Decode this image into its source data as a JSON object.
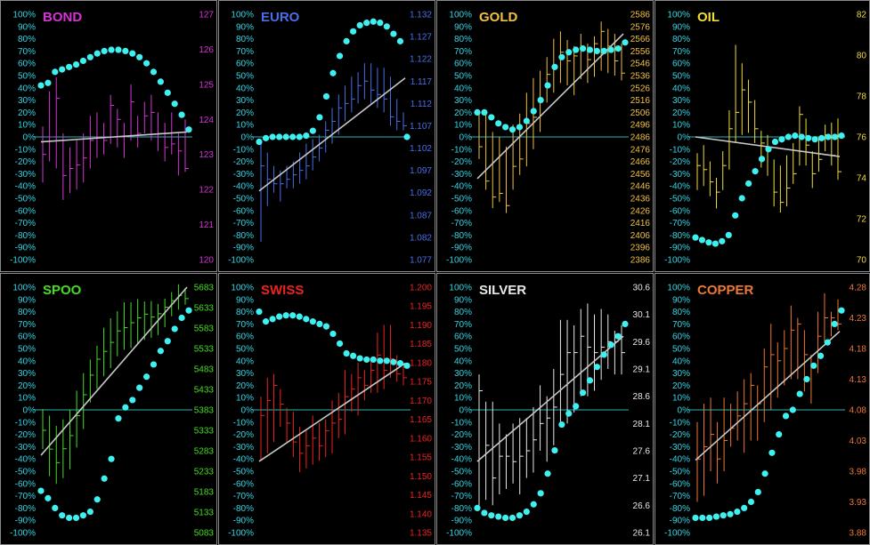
{
  "colors": {
    "background": "#000000",
    "panel_border": "#8a8a8a",
    "zero_line": "#2fb4b4",
    "left_ticks": "#33d6e6",
    "dots": "#3ff0f0",
    "regression": "#c8c8c8"
  },
  "left_axis_labels": [
    "100%",
    "90%",
    "80%",
    "70%",
    "60%",
    "50%",
    "40%",
    "30%",
    "20%",
    "10%",
    "0%",
    "-10%",
    "-20%",
    "-30%",
    "-40%",
    "-50%",
    "-60%",
    "-70%",
    "-80%",
    "-90%",
    "-100%"
  ],
  "chart_data": [
    {
      "type": "bar",
      "title": "BOND",
      "color": "#d633d6",
      "price_axis_labels": [
        "127",
        "126",
        "125",
        "124",
        "123",
        "122",
        "121",
        "120"
      ],
      "price_range": [
        120,
        127
      ],
      "bars": [
        [
          123.8,
          122.2,
          123.0
        ],
        [
          124.8,
          122.8,
          123.5
        ],
        [
          125.2,
          122.6,
          124.6
        ],
        [
          123.6,
          121.7,
          122.4
        ],
        [
          123.2,
          121.9,
          122.6
        ],
        [
          123.4,
          122.0,
          122.7
        ],
        [
          123.6,
          122.2,
          122.9
        ],
        [
          124.1,
          122.6,
          123.4
        ],
        [
          124.2,
          122.9,
          123.5
        ],
        [
          123.9,
          123.0,
          123.4
        ],
        [
          124.7,
          123.3,
          124.4
        ],
        [
          124.3,
          123.2,
          124.0
        ],
        [
          123.9,
          122.9,
          123.5
        ],
        [
          125.0,
          123.4,
          124.5
        ],
        [
          124.1,
          123.2,
          123.6
        ],
        [
          124.5,
          123.6,
          124.1
        ],
        [
          124.7,
          123.4,
          124.2
        ],
        [
          124.2,
          123.1,
          123.6
        ],
        [
          123.9,
          122.8,
          123.2
        ],
        [
          124.2,
          123.0,
          123.3
        ],
        [
          123.6,
          122.4,
          123.1
        ],
        [
          124.0,
          122.5,
          122.6
        ]
      ],
      "momentum": [
        42,
        44,
        53,
        55,
        57,
        59,
        62,
        65,
        68,
        70,
        71,
        71,
        70,
        68,
        65,
        60,
        53,
        45,
        36,
        27,
        18,
        6
      ],
      "regression": [
        -4,
        4
      ]
    },
    {
      "type": "bar",
      "title": "EURO",
      "color": "#4a6ee8",
      "price_axis_labels": [
        "1.132",
        "1.127",
        "1.122",
        "1.117",
        "1.112",
        "1.107",
        "1.102",
        "1.097",
        "1.092",
        "1.087",
        "1.082",
        "1.077"
      ],
      "price_range": [
        1.077,
        1.132
      ],
      "bars": [
        [
          1.103,
          1.081,
          1.098
        ],
        [
          1.101,
          1.089,
          1.095
        ],
        [
          1.098,
          1.092,
          1.094
        ],
        [
          1.097,
          1.09,
          1.094
        ],
        [
          1.098,
          1.093,
          1.095
        ],
        [
          1.099,
          1.093,
          1.096
        ],
        [
          1.101,
          1.094,
          1.097
        ],
        [
          1.103,
          1.095,
          1.098
        ],
        [
          1.104,
          1.097,
          1.1
        ],
        [
          1.105,
          1.099,
          1.102
        ],
        [
          1.108,
          1.101,
          1.106
        ],
        [
          1.111,
          1.103,
          1.108
        ],
        [
          1.114,
          1.105,
          1.111
        ],
        [
          1.116,
          1.108,
          1.112
        ],
        [
          1.118,
          1.11,
          1.113
        ],
        [
          1.119,
          1.112,
          1.116
        ],
        [
          1.121,
          1.113,
          1.117
        ],
        [
          1.121,
          1.112,
          1.115
        ],
        [
          1.12,
          1.111,
          1.114
        ],
        [
          1.12,
          1.11,
          1.113
        ],
        [
          1.118,
          1.107,
          1.109
        ],
        [
          1.113,
          1.106,
          1.108
        ],
        [
          1.11,
          1.106,
          1.107
        ]
      ],
      "momentum": [
        -4,
        -1,
        0,
        0,
        0,
        0,
        0,
        1,
        5,
        16,
        33,
        52,
        66,
        78,
        86,
        91,
        93,
        94,
        93,
        90,
        84,
        78,
        0
      ],
      "regression": [
        -44,
        48
      ]
    },
    {
      "type": "bar",
      "title": "GOLD",
      "color": "#f0c040",
      "price_axis_labels": [
        "2586",
        "2576",
        "2566",
        "2556",
        "2546",
        "2536",
        "2526",
        "2516",
        "2506",
        "2496",
        "2486",
        "2476",
        "2466",
        "2456",
        "2446",
        "2436",
        "2426",
        "2416",
        "2406",
        "2396",
        "2386"
      ],
      "price_range": [
        2386,
        2586
      ],
      "bars": [
        [
          2505,
          2468,
          2478
        ],
        [
          2508,
          2443,
          2450
        ],
        [
          2490,
          2428,
          2437
        ],
        [
          2486,
          2433,
          2440
        ],
        [
          2478,
          2424,
          2430
        ],
        [
          2496,
          2443,
          2462
        ],
        [
          2505,
          2455,
          2468
        ],
        [
          2522,
          2462,
          2497
        ],
        [
          2534,
          2476,
          2502
        ],
        [
          2540,
          2490,
          2516
        ],
        [
          2551,
          2514,
          2537
        ],
        [
          2566,
          2522,
          2542
        ],
        [
          2572,
          2530,
          2555
        ],
        [
          2565,
          2528,
          2548
        ],
        [
          2560,
          2520,
          2552
        ],
        [
          2570,
          2533,
          2560
        ],
        [
          2562,
          2530,
          2549
        ],
        [
          2568,
          2535,
          2562
        ],
        [
          2580,
          2540,
          2572
        ],
        [
          2574,
          2538,
          2560
        ],
        [
          2570,
          2536,
          2548
        ],
        [
          2562,
          2532,
          2538
        ]
      ],
      "momentum": [
        20,
        20,
        16,
        11,
        8,
        6,
        8,
        13,
        21,
        30,
        42,
        57,
        65,
        69,
        71,
        72,
        71,
        70,
        70,
        71,
        72,
        77
      ],
      "regression": [
        -34,
        84
      ]
    },
    {
      "type": "bar",
      "title": "OIL",
      "color": "#f0dc3c",
      "price_axis_labels": [
        "82",
        "80",
        "78",
        "76",
        "74",
        "72",
        "70"
      ],
      "price_range": [
        70,
        82
      ],
      "bars": [
        [
          75.2,
          73.4,
          74.6
        ],
        [
          75.6,
          73.6,
          74.4
        ],
        [
          74.8,
          73.1,
          73.8
        ],
        [
          74.0,
          72.5,
          73.3
        ],
        [
          75.3,
          73.4,
          74.6
        ],
        [
          77.3,
          74.4,
          76.4
        ],
        [
          80.5,
          75.7,
          77.2
        ],
        [
          79.6,
          76.1,
          78.3
        ],
        [
          78.8,
          76.2,
          77.7
        ],
        [
          77.8,
          75.7,
          76.4
        ],
        [
          76.3,
          74.5,
          75.7
        ],
        [
          76.1,
          74.1,
          75.4
        ],
        [
          74.9,
          72.6,
          73.3
        ],
        [
          74.6,
          72.3,
          72.8
        ],
        [
          75.1,
          72.6,
          73.5
        ],
        [
          75.7,
          73.7,
          74.2
        ],
        [
          77.5,
          74.6,
          77.1
        ],
        [
          76.9,
          74.6,
          75.6
        ],
        [
          75.3,
          73.5,
          74.2
        ],
        [
          76.0,
          74.3,
          74.9
        ],
        [
          76.6,
          75.3,
          76.1
        ],
        [
          76.7,
          74.6,
          75.1
        ],
        [
          76.9,
          73.9,
          74.3
        ]
      ],
      "momentum": [
        -82,
        -84,
        -86,
        -87,
        -85,
        -80,
        -64,
        -50,
        -38,
        -28,
        -18,
        -10,
        -4,
        -2,
        0,
        1,
        0,
        -1,
        -2,
        -1,
        0,
        0,
        1
      ],
      "regression": [
        0,
        -16
      ]
    },
    {
      "type": "bar",
      "title": "SPOO",
      "color": "#44dd22",
      "price_axis_labels": [
        "5683",
        "5633",
        "5583",
        "5533",
        "5483",
        "5433",
        "5383",
        "5333",
        "5283",
        "5233",
        "5183",
        "5133",
        "5083"
      ],
      "price_range": [
        5083,
        5683
      ],
      "bars": [
        [
          5385,
          5287,
          5333
        ],
        [
          5369,
          5221,
          5287
        ],
        [
          5344,
          5202,
          5254
        ],
        [
          5360,
          5216,
          5288
        ],
        [
          5384,
          5238,
          5320
        ],
        [
          5430,
          5291,
          5369
        ],
        [
          5473,
          5336,
          5420
        ],
        [
          5506,
          5401,
          5468
        ],
        [
          5540,
          5434,
          5507
        ],
        [
          5584,
          5465,
          5526
        ],
        [
          5607,
          5485,
          5548
        ],
        [
          5624,
          5514,
          5576
        ],
        [
          5646,
          5530,
          5584
        ],
        [
          5646,
          5534,
          5596
        ],
        [
          5654,
          5543,
          5608
        ],
        [
          5648,
          5554,
          5617
        ],
        [
          5649,
          5559,
          5610
        ],
        [
          5642,
          5566,
          5618
        ],
        [
          5655,
          5585,
          5634
        ],
        [
          5671,
          5612,
          5650
        ],
        [
          5690,
          5628,
          5663
        ],
        [
          5681,
          5640,
          5655
        ]
      ],
      "momentum": [
        -66,
        -72,
        -80,
        -86,
        -88,
        -88,
        -86,
        -83,
        -73,
        -56,
        -40,
        -7,
        2,
        8,
        18,
        27,
        37,
        48,
        56,
        66,
        75,
        81
      ],
      "regression": [
        -37,
        100
      ]
    },
    {
      "type": "bar",
      "title": "SWISS",
      "color": "#ee2222",
      "price_axis_labels": [
        "1.200",
        "1.195",
        "1.190",
        "1.185",
        "1.180",
        "1.175",
        "1.170",
        "1.165",
        "1.160",
        "1.155",
        "1.150",
        "1.145",
        "1.140",
        "1.135"
      ],
      "price_range": [
        1.135,
        1.2
      ],
      "bars": [
        [
          1.171,
          1.154,
          1.166
        ],
        [
          1.176,
          1.156,
          1.17
        ],
        [
          1.177,
          1.159,
          1.174
        ],
        [
          1.173,
          1.163,
          1.169
        ],
        [
          1.168,
          1.159,
          1.164
        ],
        [
          1.167,
          1.155,
          1.159
        ],
        [
          1.163,
          1.151,
          1.156
        ],
        [
          1.162,
          1.152,
          1.158
        ],
        [
          1.166,
          1.153,
          1.16
        ],
        [
          1.164,
          1.154,
          1.158
        ],
        [
          1.165,
          1.155,
          1.162
        ],
        [
          1.17,
          1.156,
          1.164
        ],
        [
          1.172,
          1.16,
          1.165
        ],
        [
          1.178,
          1.161,
          1.171
        ],
        [
          1.177,
          1.167,
          1.173
        ],
        [
          1.18,
          1.166,
          1.176
        ],
        [
          1.178,
          1.17,
          1.174
        ],
        [
          1.181,
          1.172,
          1.178
        ],
        [
          1.188,
          1.172,
          1.182
        ],
        [
          1.19,
          1.173,
          1.178
        ],
        [
          1.19,
          1.176,
          1.181
        ],
        [
          1.182,
          1.175,
          1.177
        ],
        [
          1.179,
          1.174,
          1.176
        ]
      ],
      "momentum": [
        80,
        72,
        74,
        76,
        77,
        77,
        76,
        74,
        72,
        70,
        68,
        62,
        54,
        46,
        44,
        42,
        41,
        41,
        40,
        40,
        39,
        38,
        36
      ],
      "regression": [
        -42,
        38
      ]
    },
    {
      "type": "bar",
      "title": "SILVER",
      "color": "#e8e8e8",
      "price_axis_labels": [
        "30.6",
        "30.1",
        "29.6",
        "29.1",
        "28.6",
        "28.1",
        "27.6",
        "27.1",
        "26.6",
        "26.1"
      ],
      "price_range": [
        26.1,
        30.6
      ],
      "bars": [
        [
          29.0,
          26.6,
          28.7
        ],
        [
          28.5,
          26.7,
          27.7
        ],
        [
          28.5,
          26.6,
          27.1
        ],
        [
          28.1,
          26.8,
          27.5
        ],
        [
          27.9,
          26.9,
          27.5
        ],
        [
          28.1,
          27.0,
          27.4
        ],
        [
          28.2,
          26.8,
          27.5
        ],
        [
          28.2,
          27.1,
          27.6
        ],
        [
          28.4,
          27.2,
          27.8
        ],
        [
          28.8,
          27.6,
          28.1
        ],
        [
          28.6,
          27.4,
          28.2
        ],
        [
          29.1,
          27.7,
          28.4
        ],
        [
          30.0,
          28.1,
          29.0
        ],
        [
          30.0,
          28.1,
          29.4
        ],
        [
          29.9,
          28.3,
          29.4
        ],
        [
          30.2,
          28.6,
          29.7
        ],
        [
          30.3,
          28.6,
          29.5
        ],
        [
          30.1,
          28.7,
          29.4
        ],
        [
          30.2,
          28.9,
          29.5
        ],
        [
          30.1,
          29.1,
          29.6
        ],
        [
          29.8,
          29.0,
          29.6
        ],
        [
          29.9,
          29.0,
          29.4
        ]
      ],
      "momentum": [
        -80,
        -84,
        -86,
        -87,
        -88,
        -88,
        -86,
        -83,
        -77,
        -68,
        -52,
        -33,
        -12,
        -3,
        3,
        14,
        24,
        35,
        45,
        53,
        60,
        70
      ],
      "regression": [
        -42,
        60
      ]
    },
    {
      "type": "bar",
      "title": "COPPER",
      "color": "#ee7733",
      "price_axis_labels": [
        "4.28",
        "4.23",
        "4.18",
        "4.13",
        "4.08",
        "4.03",
        "3.98",
        "3.93",
        "3.88"
      ],
      "price_range": [
        3.88,
        4.28
      ],
      "bars": [
        [
          4.06,
          3.93,
          4.0
        ],
        [
          4.09,
          3.94,
          4.02
        ],
        [
          4.1,
          3.98,
          4.04
        ],
        [
          4.06,
          3.96,
          4.0
        ],
        [
          4.1,
          3.98,
          4.03
        ],
        [
          4.09,
          4.02,
          4.05
        ],
        [
          4.11,
          4.03,
          4.07
        ],
        [
          4.13,
          4.01,
          4.09
        ],
        [
          4.14,
          4.03,
          4.12
        ],
        [
          4.12,
          4.03,
          4.09
        ],
        [
          4.18,
          4.06,
          4.15
        ],
        [
          4.22,
          4.08,
          4.17
        ],
        [
          4.19,
          4.1,
          4.16
        ],
        [
          4.21,
          4.12,
          4.18
        ],
        [
          4.25,
          4.13,
          4.21
        ],
        [
          4.23,
          4.13,
          4.22
        ],
        [
          4.21,
          4.11,
          4.17
        ],
        [
          4.17,
          4.09,
          4.15
        ],
        [
          4.24,
          4.14,
          4.2
        ],
        [
          4.27,
          4.19,
          4.23
        ],
        [
          4.24,
          4.2,
          4.23
        ],
        [
          4.26,
          4.21,
          4.22
        ]
      ],
      "momentum": [
        -88,
        -88,
        -88,
        -87,
        -86,
        -85,
        -83,
        -80,
        -75,
        -67,
        -52,
        -35,
        -20,
        -5,
        0,
        13,
        25,
        36,
        44,
        55,
        70,
        81
      ],
      "regression": [
        -41,
        64
      ]
    }
  ]
}
